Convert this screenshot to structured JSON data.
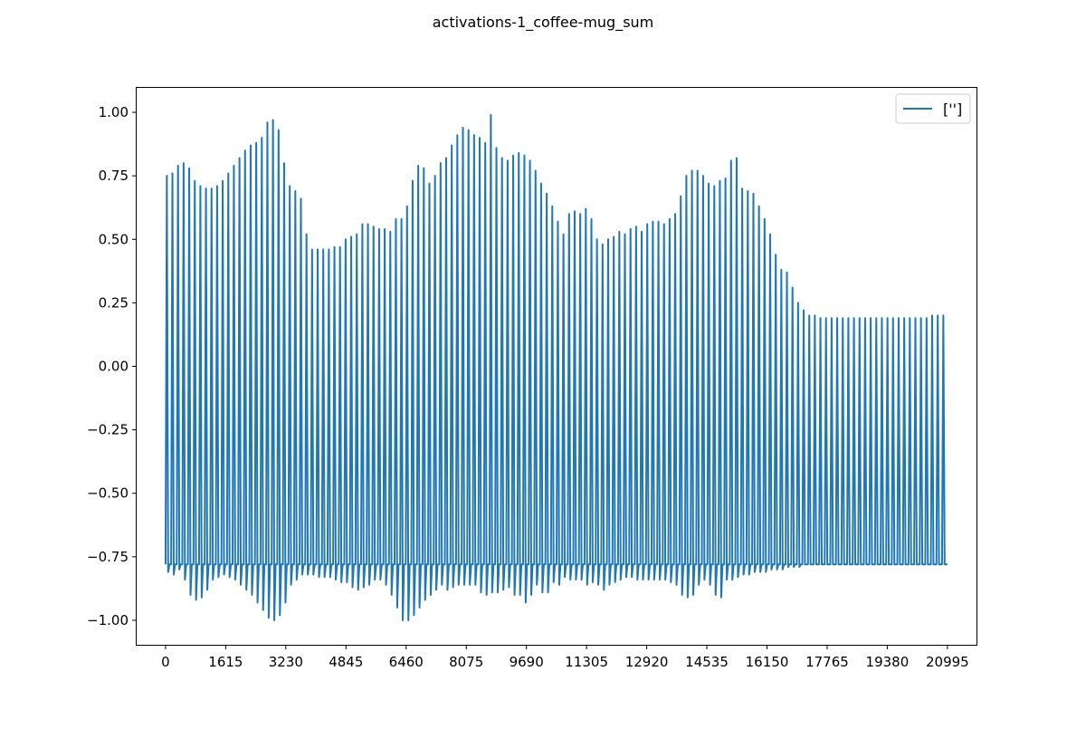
{
  "figure": {
    "title": "activations-1_coffee-mug_sum"
  },
  "chart_data": {
    "type": "line",
    "title": "activations-1_coffee-mug_sum",
    "xlabel": "",
    "ylabel": "",
    "xlim": [
      -800,
      21800
    ],
    "ylim": [
      -1.1,
      1.1
    ],
    "x_ticks": [
      0,
      1615,
      3230,
      4845,
      6460,
      8075,
      9690,
      11305,
      12920,
      14535,
      16150,
      17765,
      19380,
      20995
    ],
    "y_ticks": [
      1.0,
      0.75,
      0.5,
      0.25,
      0.0,
      -0.25,
      -0.5,
      -0.75,
      -1.0
    ],
    "y_tick_labels": [
      "1.00",
      "0.75",
      "0.50",
      "0.25",
      "0.00",
      "−0.25",
      "−0.50",
      "−0.75",
      "−1.00"
    ],
    "grid": false,
    "legend": {
      "position": "top-right",
      "entries": [
        "['']"
      ]
    },
    "color": "#1f77b4",
    "series": [
      {
        "name": "['']",
        "spike_x": [
          0,
          150,
          300,
          450,
          600,
          750,
          900,
          1050,
          1200,
          1350,
          1500,
          1650,
          1800,
          1950,
          2100,
          2250,
          2400,
          2550,
          2700,
          2850,
          3000,
          3150,
          3300,
          3450,
          3600,
          3750,
          3900,
          4050,
          4200,
          4350,
          4500,
          4650,
          4800,
          4950,
          5100,
          5250,
          5400,
          5550,
          5700,
          5850,
          6000,
          6150,
          6300,
          6450,
          6600,
          6750,
          6900,
          7050,
          7200,
          7350,
          7500,
          7650,
          7800,
          7950,
          8100,
          8250,
          8400,
          8550,
          8700,
          8850,
          9000,
          9150,
          9300,
          9450,
          9600,
          9750,
          9900,
          10050,
          10200,
          10350,
          10500,
          10650,
          10800,
          10950,
          11100,
          11250,
          11400,
          11550,
          11700,
          11850,
          12000,
          12150,
          12300,
          12450,
          12600,
          12750,
          12900,
          13050,
          13200,
          13350,
          13500,
          13650,
          13800,
          13950,
          14100,
          14250,
          14400,
          14550,
          14700,
          14850,
          15000,
          15150,
          15300,
          15450,
          15600,
          15750,
          15900,
          16050,
          16200,
          16350,
          16500,
          16650,
          16800,
          16950,
          17100,
          17250,
          17400,
          17550,
          17700,
          17850,
          18000,
          18150,
          18300,
          18450,
          18600,
          18750,
          18900,
          19050,
          19200,
          19350,
          19500,
          19650,
          19800,
          19950,
          20100,
          20250,
          20400,
          20550,
          20700,
          20850
        ],
        "peak_values": [
          0.75,
          0.76,
          0.79,
          0.8,
          0.78,
          0.73,
          0.71,
          0.7,
          0.7,
          0.71,
          0.73,
          0.76,
          0.79,
          0.82,
          0.85,
          0.87,
          0.88,
          0.9,
          0.96,
          0.97,
          0.93,
          0.8,
          0.71,
          0.69,
          0.66,
          0.52,
          0.46,
          0.46,
          0.46,
          0.46,
          0.47,
          0.47,
          0.5,
          0.51,
          0.52,
          0.56,
          0.56,
          0.55,
          0.54,
          0.54,
          0.53,
          0.58,
          0.58,
          0.63,
          0.73,
          0.79,
          0.78,
          0.72,
          0.75,
          0.8,
          0.82,
          0.87,
          0.91,
          0.94,
          0.93,
          0.91,
          0.9,
          0.88,
          0.99,
          0.86,
          0.82,
          0.81,
          0.83,
          0.84,
          0.83,
          0.81,
          0.77,
          0.72,
          0.68,
          0.63,
          0.57,
          0.52,
          0.6,
          0.61,
          0.6,
          0.62,
          0.58,
          0.5,
          0.48,
          0.5,
          0.51,
          0.53,
          0.52,
          0.54,
          0.55,
          0.53,
          0.56,
          0.57,
          0.57,
          0.56,
          0.58,
          0.6,
          0.67,
          0.75,
          0.77,
          0.77,
          0.75,
          0.72,
          0.71,
          0.73,
          0.74,
          0.81,
          0.82,
          0.7,
          0.69,
          0.68,
          0.63,
          0.58,
          0.52,
          0.44,
          0.38,
          0.37,
          0.31,
          0.25,
          0.22,
          0.2,
          0.2,
          0.19,
          0.19,
          0.19,
          0.19,
          0.19,
          0.19,
          0.19,
          0.19,
          0.19,
          0.19,
          0.19,
          0.19,
          0.19,
          0.19,
          0.19,
          0.19,
          0.19,
          0.19,
          0.19,
          0.19,
          0.2,
          0.2,
          0.2
        ],
        "trough_values": [
          -0.81,
          -0.82,
          -0.8,
          -0.84,
          -0.9,
          -0.92,
          -0.91,
          -0.88,
          -0.84,
          -0.83,
          -0.82,
          -0.83,
          -0.84,
          -0.86,
          -0.88,
          -0.9,
          -0.93,
          -0.96,
          -0.99,
          -1.0,
          -0.98,
          -0.93,
          -0.86,
          -0.84,
          -0.82,
          -0.82,
          -0.82,
          -0.83,
          -0.83,
          -0.83,
          -0.84,
          -0.85,
          -0.85,
          -0.87,
          -0.88,
          -0.87,
          -0.86,
          -0.84,
          -0.84,
          -0.86,
          -0.9,
          -0.95,
          -1.0,
          -1.0,
          -0.98,
          -0.95,
          -0.92,
          -0.9,
          -0.88,
          -0.86,
          -0.88,
          -0.87,
          -0.86,
          -0.86,
          -0.86,
          -0.86,
          -0.89,
          -0.9,
          -0.89,
          -0.89,
          -0.88,
          -0.87,
          -0.9,
          -0.9,
          -0.93,
          -0.9,
          -0.86,
          -0.89,
          -0.89,
          -0.85,
          -0.86,
          -0.83,
          -0.84,
          -0.84,
          -0.84,
          -0.86,
          -0.85,
          -0.86,
          -0.88,
          -0.86,
          -0.85,
          -0.84,
          -0.83,
          -0.83,
          -0.84,
          -0.84,
          -0.84,
          -0.84,
          -0.84,
          -0.84,
          -0.85,
          -0.86,
          -0.9,
          -0.91,
          -0.9,
          -0.86,
          -0.84,
          -0.86,
          -0.9,
          -0.91,
          -0.84,
          -0.84,
          -0.83,
          -0.82,
          -0.82,
          -0.81,
          -0.81,
          -0.81,
          -0.8,
          -0.8,
          -0.8,
          -0.79,
          -0.79,
          -0.79,
          -0.78,
          -0.78,
          -0.78,
          -0.78,
          -0.78,
          -0.78,
          -0.78,
          -0.78,
          -0.78,
          -0.78,
          -0.78,
          -0.78,
          -0.78,
          -0.78,
          -0.78,
          -0.78,
          -0.78,
          -0.78,
          -0.78,
          -0.78,
          -0.78,
          -0.78,
          -0.78,
          -0.78,
          -0.78,
          -0.78
        ],
        "baseline_value": -0.78,
        "x_end": 20995
      }
    ]
  }
}
